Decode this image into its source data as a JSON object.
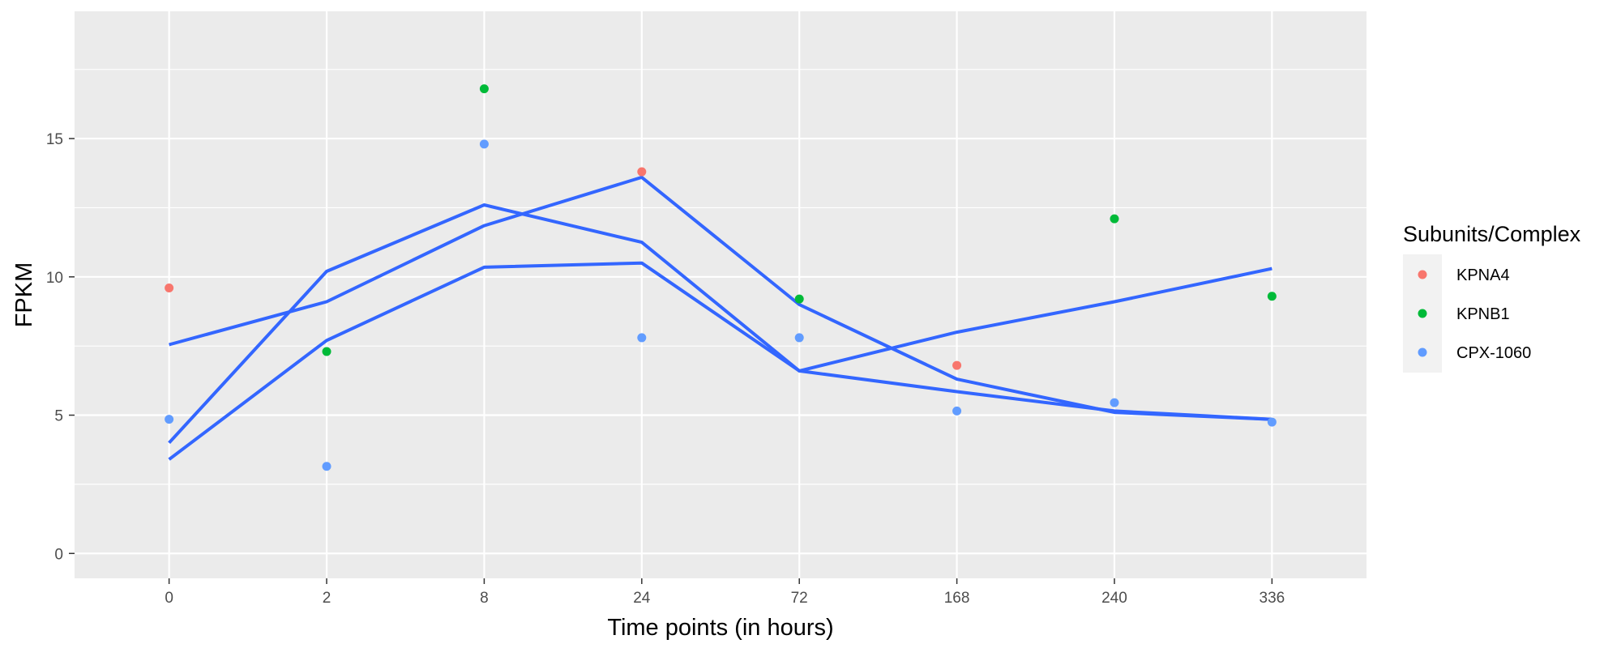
{
  "chart_data": {
    "type": "scatter",
    "title": "",
    "xlabel": "Time points (in hours)",
    "ylabel": "FPKM",
    "categories": [
      "0",
      "2",
      "8",
      "24",
      "72",
      "168",
      "240",
      "336"
    ],
    "y_ticks": [
      0,
      5,
      10,
      15
    ],
    "ylim": [
      -0.9,
      19.6
    ],
    "grid": true,
    "legend": {
      "title": "Subunits/Complex",
      "position": "right",
      "entries": [
        "KPNA4",
        "KPNB1",
        "CPX-1060"
      ]
    },
    "series": [
      {
        "name": "KPNA4",
        "color": "#F8766D",
        "values": [
          9.6,
          null,
          null,
          13.8,
          null,
          6.8,
          null,
          null
        ]
      },
      {
        "name": "KPNB1",
        "color": "#00BA38",
        "values": [
          null,
          7.3,
          16.8,
          null,
          9.2,
          null,
          12.1,
          9.3
        ]
      },
      {
        "name": "CPX-1060",
        "color": "#619CFF",
        "values": [
          4.85,
          3.15,
          14.8,
          7.8,
          7.8,
          5.15,
          5.45,
          4.75
        ]
      }
    ],
    "trend_lines": {
      "color": "#3366FF",
      "lines": [
        [
          7.55,
          9.1,
          11.85,
          13.6,
          9.0,
          6.3,
          5.1,
          4.85
        ],
        [
          4.0,
          10.2,
          12.6,
          11.25,
          6.6,
          8.0,
          9.1,
          10.3
        ],
        [
          3.4,
          7.7,
          10.35,
          10.5,
          6.6,
          5.85,
          5.15,
          4.85
        ]
      ]
    }
  }
}
